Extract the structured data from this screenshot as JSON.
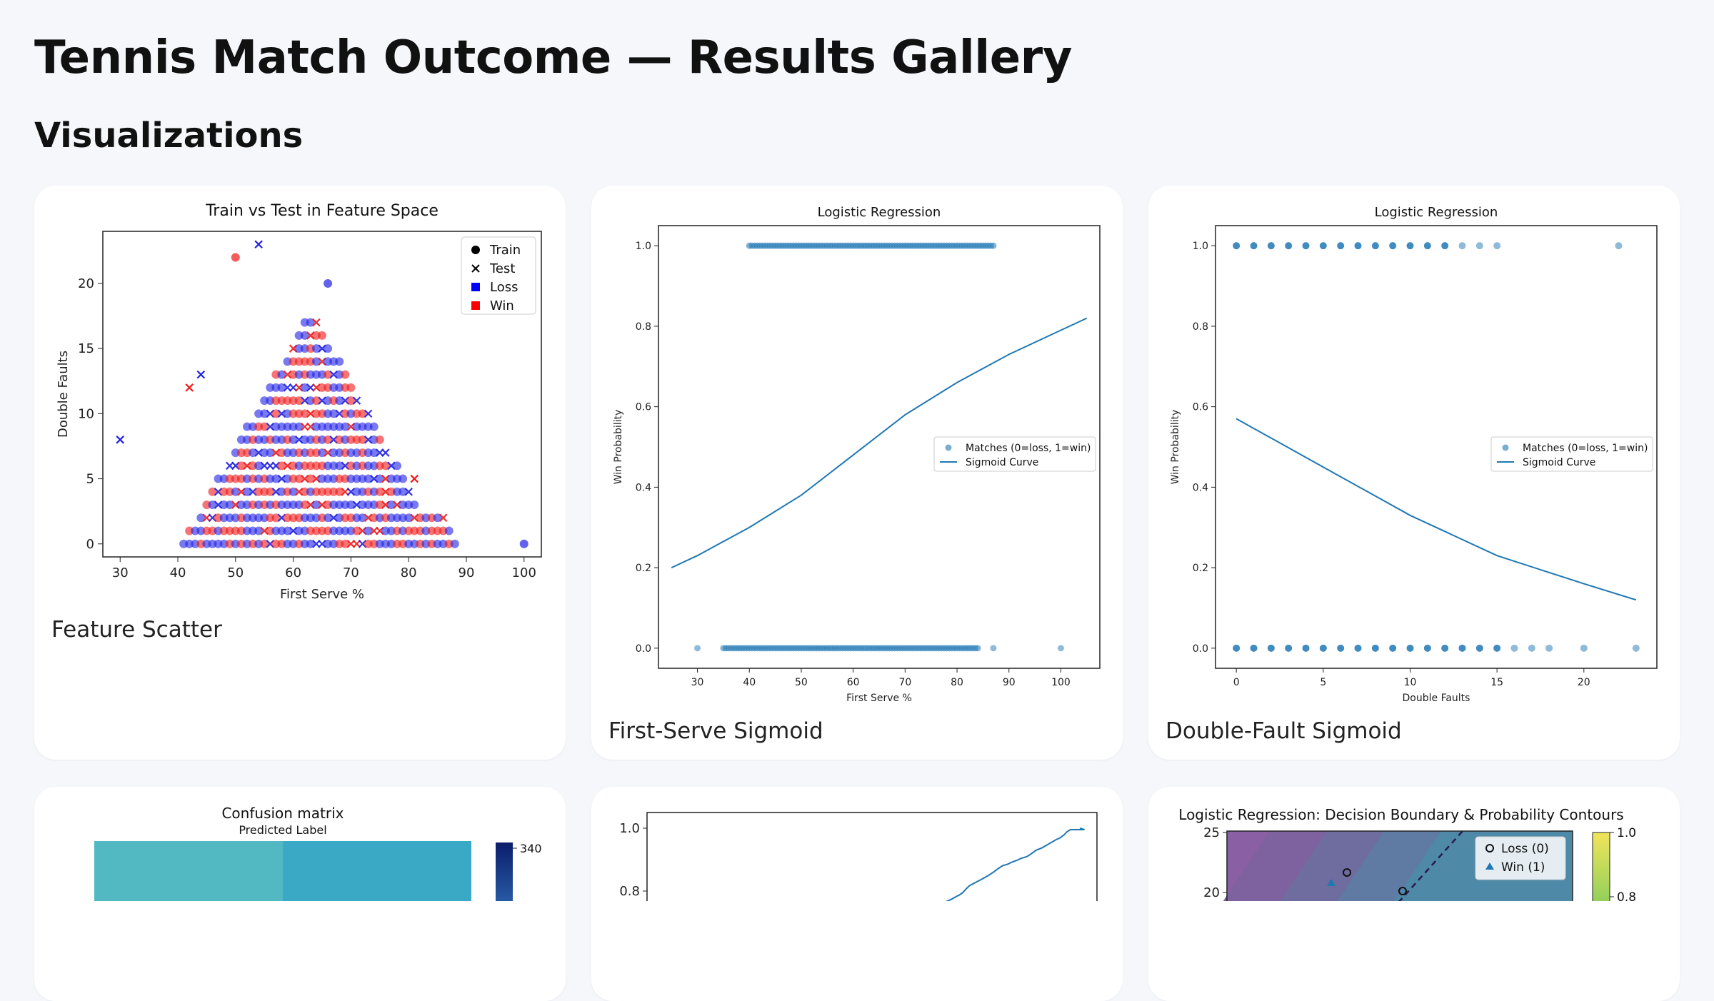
{
  "page": {
    "title": "Tennis Match Outcome — Results Gallery",
    "section": "Visualizations"
  },
  "cards": {
    "c1": {
      "caption": "Feature Scatter"
    },
    "c2": {
      "caption": "First-Serve Sigmoid"
    },
    "c3": {
      "caption": "Double-Fault Sigmoid"
    }
  },
  "chart_data": [
    {
      "id": "scatter",
      "type": "scatter",
      "title": "Train vs Test in Feature Space",
      "xlabel": "First Serve %",
      "ylabel": "Double Faults",
      "xlim": [
        27,
        103
      ],
      "ylim": [
        -1,
        24
      ],
      "xticks": [
        30,
        40,
        50,
        60,
        70,
        80,
        90,
        100
      ],
      "yticks": [
        0,
        5,
        10,
        15,
        20
      ],
      "legend": {
        "placement": "top-right",
        "entries": [
          "Train",
          "Test",
          "Loss",
          "Win"
        ]
      },
      "colors": {
        "loss": "#1f1fe6",
        "win": "#f01818"
      },
      "points_note_outliers": [
        {
          "x": 50,
          "y": 22,
          "set": "train",
          "label": "win"
        },
        {
          "x": 54,
          "y": 23,
          "set": "test",
          "label": "loss"
        },
        {
          "x": 66,
          "y": 20,
          "set": "train",
          "label": "loss"
        },
        {
          "x": 30,
          "y": 8,
          "set": "test",
          "label": "loss"
        },
        {
          "x": 100,
          "y": 0,
          "set": "train",
          "label": "loss"
        },
        {
          "x": 42,
          "y": 12,
          "set": "test",
          "label": "win"
        },
        {
          "x": 81,
          "y": 5,
          "set": "test",
          "label": "win"
        },
        {
          "x": 44,
          "y": 13,
          "set": "test",
          "label": "loss"
        }
      ]
    },
    {
      "id": "sig1",
      "type": "scatter",
      "title": "Logistic Regression",
      "xlabel": "First Serve %",
      "ylabel": "Win Probability",
      "xlim": [
        22.5,
        107.5
      ],
      "ylim": [
        -0.05,
        1.05
      ],
      "xticks": [
        30,
        40,
        50,
        60,
        70,
        80,
        90,
        100
      ],
      "yticks": [
        "0.0",
        "0.2",
        "0.4",
        "0.6",
        "0.8",
        "1.0"
      ],
      "legend": {
        "placement": "center-right",
        "entries": [
          "Matches (0=loss, 1=win)",
          "Sigmoid Curve"
        ]
      },
      "win_x_range": [
        40,
        87
      ],
      "loss_x_range": [
        35,
        84
      ],
      "loss_outliers": [
        30,
        87,
        100
      ],
      "sigmoid": {
        "x": [
          25,
          30,
          40,
          50,
          60,
          70,
          80,
          90,
          100,
          105
        ],
        "y": [
          0.2,
          0.23,
          0.3,
          0.38,
          0.48,
          0.58,
          0.66,
          0.73,
          0.79,
          0.82
        ]
      }
    },
    {
      "id": "sig2",
      "type": "scatter",
      "title": "Logistic Regression",
      "xlabel": "Double Faults",
      "ylabel": "Win Probability",
      "xlim": [
        -1.2,
        24.2
      ],
      "ylim": [
        -0.05,
        1.05
      ],
      "xticks": [
        0,
        5,
        10,
        15,
        20
      ],
      "yticks": [
        "0.0",
        "0.2",
        "0.4",
        "0.6",
        "0.8",
        "1.0"
      ],
      "legend": {
        "placement": "center-right",
        "entries": [
          "Matches (0=loss, 1=win)",
          "Sigmoid Curve"
        ]
      },
      "win_x": [
        0,
        1,
        2,
        3,
        4,
        5,
        6,
        7,
        8,
        9,
        10,
        11,
        12,
        13,
        14,
        15,
        22
      ],
      "loss_x": [
        0,
        1,
        2,
        3,
        4,
        5,
        6,
        7,
        8,
        9,
        10,
        11,
        12,
        13,
        14,
        15,
        16,
        17,
        18,
        20,
        23
      ],
      "sigmoid": {
        "x": [
          0,
          5,
          10,
          15,
          20,
          23
        ],
        "y": [
          0.57,
          0.45,
          0.33,
          0.23,
          0.16,
          0.12
        ]
      }
    },
    {
      "id": "cm",
      "type": "heatmap",
      "title": "Confusion matrix",
      "xlabel": "Predicted Label",
      "colorbar_ticks": [
        "340"
      ]
    },
    {
      "id": "roc",
      "type": "line",
      "yticks": [
        "1.0",
        "0.8"
      ]
    },
    {
      "id": "db",
      "type": "scatter",
      "title": "Logistic Regression: Decision Boundary & Probability Contours",
      "yticks": [
        "25",
        "20"
      ],
      "legend": {
        "entries": [
          "Loss (0)",
          "Win  (1)"
        ]
      },
      "colorbar_ticks": [
        "1.0",
        "0.8"
      ]
    }
  ]
}
